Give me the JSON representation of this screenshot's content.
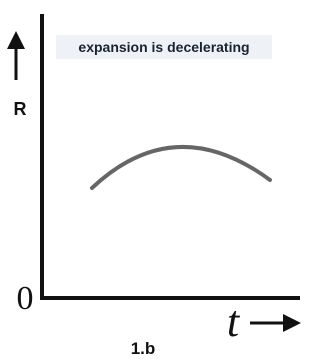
{
  "labels": {
    "annotation": "expansion is decelerating",
    "y_axis": "R",
    "origin": "0",
    "x_axis": "t",
    "caption": "1.b"
  }
}
